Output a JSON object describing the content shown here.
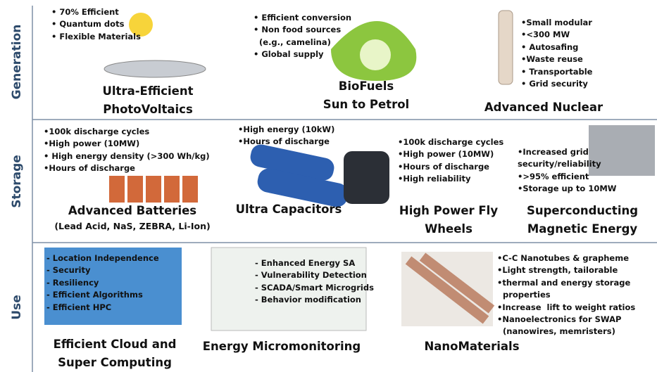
{
  "rows": [
    {
      "label": "Generation",
      "items": [
        {
          "bullets": [
            "• 70% Efficient",
            "• Quantum dots",
            "• Flexible Materials"
          ],
          "title": [
            "Ultra-Efficient",
            "PhotoVoltaics"
          ]
        },
        {
          "bullets": [
            "• Efficient conversion",
            "• Non food sources",
            "  (e.g., camelina)",
            "• Global supply"
          ],
          "title": [
            "BioFuels",
            "Sun to Petrol"
          ]
        },
        {
          "bullets": [
            "•Small modular",
            "•<300 MW",
            "• Autosafing",
            "•Waste reuse",
            "• Transportable",
            "• Grid security"
          ],
          "title": [
            "Advanced Nuclear"
          ]
        }
      ]
    },
    {
      "label": "Storage",
      "items": [
        {
          "bullets": [
            "•100k discharge cycles",
            "•High power (10MW)",
            "• High energy density (>300 Wh/kg)",
            "•Hours of discharge"
          ],
          "title": [
            "Advanced Batteries"
          ],
          "subtitle": "(Lead Acid, NaS, ZEBRA, Li-Ion)"
        },
        {
          "bullets": [
            "•High energy (10kW)",
            "•Hours of discharge"
          ],
          "title": [
            "Ultra Capacitors"
          ]
        },
        {
          "bullets": [
            "•100k discharge cycles",
            "•High power (10MW)",
            "•Hours of discharge",
            "•High reliability"
          ],
          "title": [
            "High Power Fly",
            "Wheels"
          ]
        },
        {
          "bullets": [
            "•Increased grid",
            "security/reliability",
            "•>95% efficient",
            "•Storage up to 10MW"
          ],
          "title": [
            "Superconducting",
            "Magnetic Energy"
          ]
        }
      ]
    },
    {
      "label": "Use",
      "items": [
        {
          "bullets": [
            "- Location Independence",
            "- Security",
            "- Resiliency",
            "- Efficient Algorithms",
            "- Efficient HPC"
          ],
          "title": [
            "Efficient Cloud and",
            "Super Computing"
          ]
        },
        {
          "bullets": [
            "- Enhanced Energy SA",
            "- Vulnerability Detection",
            "- SCADA/Smart Microgrids",
            "- Behavior modification"
          ],
          "title": [
            "Energy Micromonitoring"
          ]
        },
        {
          "bullets": [
            "•C-C Nanotubes & grapheme",
            "•Light strength, tailorable",
            "•thermal and energy storage",
            "  properties",
            "•Increase  lift to weight ratios",
            "•Nanoelectronics for SWAP",
            "  (nanowires, memristers)"
          ],
          "title": [
            "NanoMaterials"
          ]
        }
      ]
    }
  ]
}
